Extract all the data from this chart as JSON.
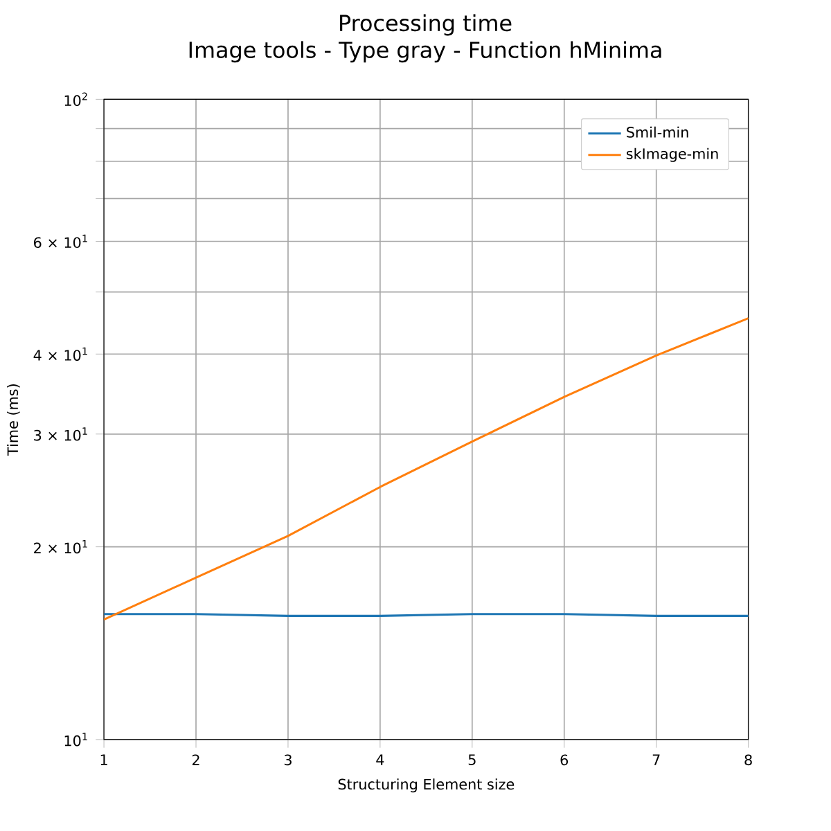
{
  "chart_data": {
    "type": "line",
    "title": "Processing time",
    "subtitle": "Image tools - Type gray - Function hMinima",
    "xlabel": "Structuring Element size",
    "ylabel": "Time (ms)",
    "x": [
      1,
      2,
      3,
      4,
      5,
      6,
      7,
      8
    ],
    "series": [
      {
        "name": "Smil-min",
        "color": "#1f77b4",
        "values": [
          15.7,
          15.7,
          15.6,
          15.6,
          15.7,
          15.7,
          15.6,
          15.6
        ]
      },
      {
        "name": "skImage-min",
        "color": "#ff7f0e",
        "values": [
          15.4,
          17.9,
          20.8,
          24.8,
          29.2,
          34.3,
          39.8,
          45.5
        ]
      }
    ],
    "xlim": [
      1,
      8
    ],
    "xticks": [
      1,
      2,
      3,
      4,
      5,
      6,
      7,
      8
    ],
    "ylim": [
      10,
      100
    ],
    "yticks": [
      {
        "value": 10,
        "label": "10$^{1}$"
      },
      {
        "value": 20,
        "label": "2 × 10$^{1}$"
      },
      {
        "value": 30,
        "label": "3 × 10$^{1}$"
      },
      {
        "value": 40,
        "label": "4 × 10$^{1}$"
      },
      {
        "value": 50,
        "label": null
      },
      {
        "value": 60,
        "label": "6 × 10$^{1}$"
      },
      {
        "value": 70,
        "label": null
      },
      {
        "value": 80,
        "label": null
      },
      {
        "value": 90,
        "label": null
      },
      {
        "value": 100,
        "label": "10$^{2}$"
      }
    ],
    "log": "y",
    "grid": true,
    "legend": "top right",
    "marker": "none",
    "line_style": "solid"
  }
}
